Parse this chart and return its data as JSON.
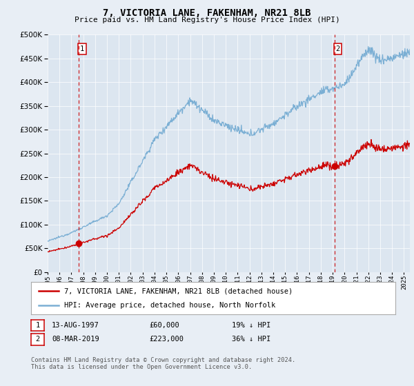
{
  "title": "7, VICTORIA LANE, FAKENHAM, NR21 8LB",
  "subtitle": "Price paid vs. HM Land Registry's House Price Index (HPI)",
  "hpi_color": "#7bafd4",
  "price_color": "#cc0000",
  "vline_color": "#cc0000",
  "fig_bg": "#e8eef5",
  "plot_bg": "#dce6f0",
  "ylim": [
    0,
    500000
  ],
  "yticks": [
    0,
    50000,
    100000,
    150000,
    200000,
    250000,
    300000,
    350000,
    400000,
    450000,
    500000
  ],
  "sale1_price": 60000,
  "sale1_x": 1997.62,
  "sale2_price": 223000,
  "sale2_x": 2019.17,
  "legend_line1": "7, VICTORIA LANE, FAKENHAM, NR21 8LB (detached house)",
  "legend_line2": "HPI: Average price, detached house, North Norfolk",
  "table_row1": [
    "1",
    "13-AUG-1997",
    "£60,000",
    "19% ↓ HPI"
  ],
  "table_row2": [
    "2",
    "08-MAR-2019",
    "£223,000",
    "36% ↓ HPI"
  ],
  "footer": "Contains HM Land Registry data © Crown copyright and database right 2024.\nThis data is licensed under the Open Government Licence v3.0.",
  "xmin": 1995.0,
  "xmax": 2025.5
}
